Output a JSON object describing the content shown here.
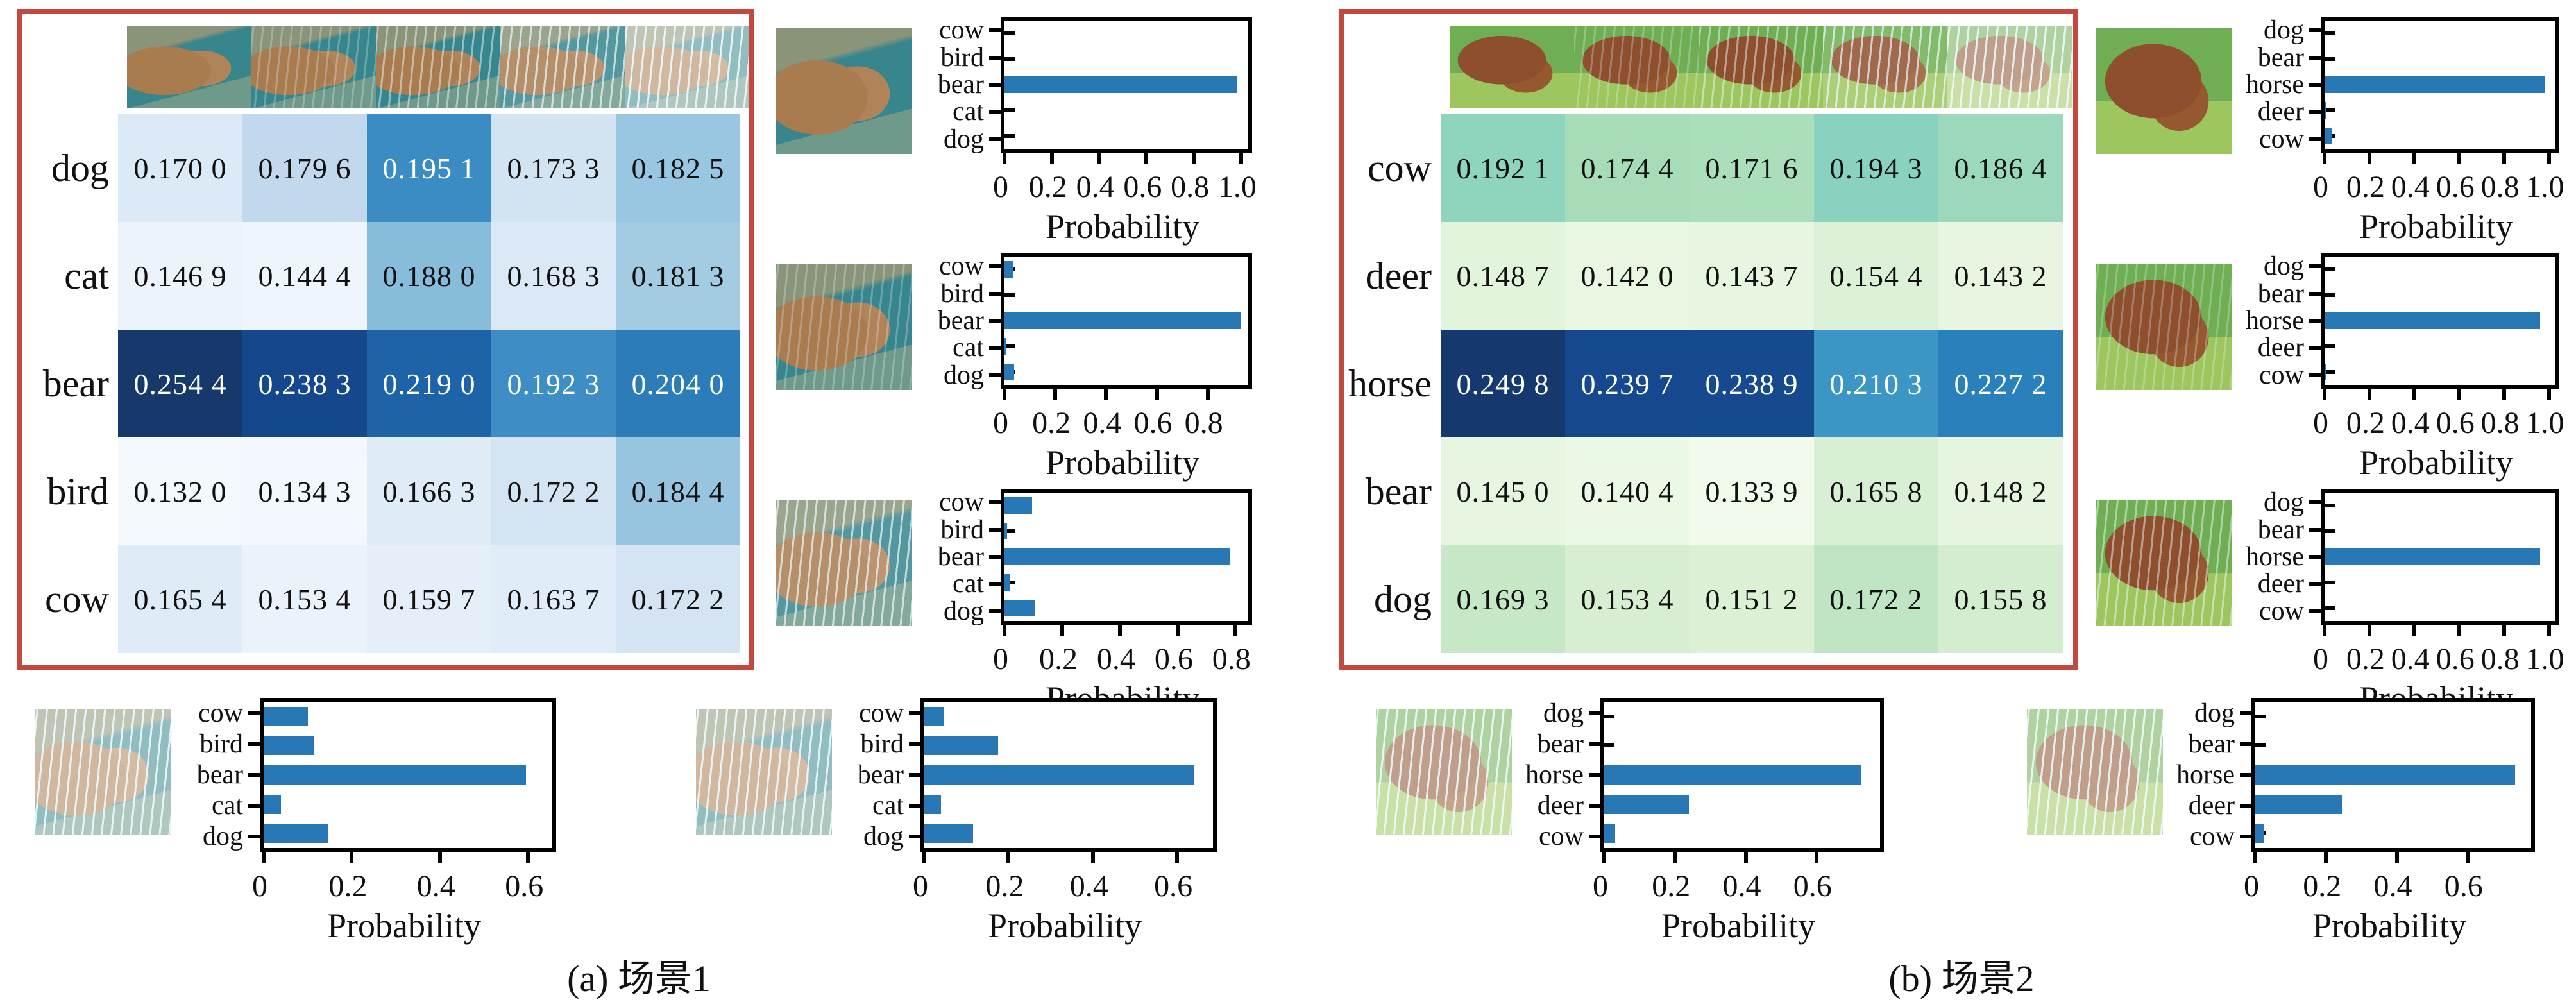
{
  "figure": {
    "captions": [
      "(a) 场景1",
      "(b) 场景2"
    ]
  },
  "colors": {
    "accent": "#2878b5",
    "frame": "#c5483f",
    "bar_blue": "#2878b5"
  },
  "images": {
    "a_strip": [
      {
        "scene": "bear",
        "rain": 0
      },
      {
        "scene": "bear",
        "rain": 1
      },
      {
        "scene": "bear",
        "rain": 2
      },
      {
        "scene": "bear",
        "rain": 3
      },
      {
        "scene": "bear",
        "rain": 4
      }
    ],
    "a_right": [
      {
        "scene": "bear",
        "rain": 0
      },
      {
        "scene": "bear",
        "rain": 1
      },
      {
        "scene": "bear",
        "rain": 3
      }
    ],
    "a_bottom": [
      {
        "scene": "bear",
        "rain": 4
      },
      {
        "scene": "bear",
        "rain": 4
      }
    ],
    "b_strip": [
      {
        "scene": "horse",
        "rain": 0
      },
      {
        "scene": "horse",
        "rain": 1
      },
      {
        "scene": "horse",
        "rain": 2
      },
      {
        "scene": "horse",
        "rain": 3
      },
      {
        "scene": "horse",
        "rain": 4
      }
    ],
    "b_right": [
      {
        "scene": "horse",
        "rain": 0
      },
      {
        "scene": "horse",
        "rain": 1
      },
      {
        "scene": "horse",
        "rain": 2
      }
    ],
    "b_bottom": [
      {
        "scene": "horse",
        "rain": 4
      },
      {
        "scene": "horse",
        "rain": 4
      }
    ]
  },
  "chart_data": [
    {
      "id": "scene1-confidence-heatmap",
      "type": "heatmap",
      "colormap": "Blues",
      "row_labels": [
        "dog",
        "cat",
        "bear",
        "bird",
        "cow"
      ],
      "col_labels": [
        "rain-level-0",
        "rain-level-1",
        "rain-level-2",
        "rain-level-3",
        "rain-level-4"
      ],
      "values": [
        [
          0.17,
          0.1796,
          0.1951,
          0.1733,
          0.1825
        ],
        [
          0.1469,
          0.1444,
          0.188,
          0.1683,
          0.1813
        ],
        [
          0.2544,
          0.2383,
          0.219,
          0.1923,
          0.204
        ],
        [
          0.132,
          0.1343,
          0.1663,
          0.1722,
          0.1844
        ],
        [
          0.1654,
          0.1534,
          0.1597,
          0.1637,
          0.1722
        ]
      ],
      "cell_text": [
        [
          "0.170 0",
          "0.179 6",
          "0.195 1",
          "0.173 3",
          "0.182 5"
        ],
        [
          "0.146 9",
          "0.144 4",
          "0.188 0",
          "0.168 3",
          "0.181 3"
        ],
        [
          "0.254 4",
          "0.238 3",
          "0.219 0",
          "0.192 3",
          "0.204 0"
        ],
        [
          "0.132 0",
          "0.134 3",
          "0.166 3",
          "0.172 2",
          "0.184 4"
        ],
        [
          "0.165 4",
          "0.153 4",
          "0.159 7",
          "0.163 7",
          "0.172 2"
        ]
      ],
      "cell_colors": [
        [
          "#dce9f6",
          "#c2d8ed",
          "#3c8cc4",
          "#d2e3f2",
          "#99c6e0"
        ],
        [
          "#ecf3fb",
          "#eff5fc",
          "#87bcdb",
          "#dbe8f5",
          "#a3cbe2"
        ],
        [
          "#16386b",
          "#14478c",
          "#1e63a8",
          "#3e8ec5",
          "#2d7cba"
        ],
        [
          "#f4f9fe",
          "#f2f8fd",
          "#dfebf7",
          "#d5e4f2",
          "#97c5df"
        ],
        [
          "#dfebf7",
          "#eaf2fa",
          "#e5eff9",
          "#e0ecf7",
          "#d5e4f2"
        ]
      ],
      "text_light": [
        [
          false,
          false,
          true,
          false,
          false
        ],
        [
          false,
          false,
          false,
          false,
          false
        ],
        [
          true,
          true,
          true,
          true,
          true
        ],
        [
          false,
          false,
          false,
          false,
          false
        ],
        [
          false,
          false,
          false,
          false,
          false
        ]
      ]
    },
    {
      "id": "scene1-pred-clean",
      "type": "bar",
      "orientation": "horizontal",
      "categories": [
        "cow",
        "bird",
        "bear",
        "cat",
        "dog"
      ],
      "values": [
        0,
        0,
        0.98,
        0,
        0
      ],
      "xmax": 1.03,
      "xticks": [
        0,
        0.2,
        0.4,
        0.6,
        0.8,
        1.0
      ],
      "xtick_labels": [
        "0",
        "0.2",
        "0.4",
        "0.6",
        "0.8",
        "1.0"
      ],
      "xlabel": "Probability"
    },
    {
      "id": "scene1-pred-light-rain",
      "type": "bar",
      "orientation": "horizontal",
      "categories": [
        "cow",
        "bird",
        "bear",
        "cat",
        "dog"
      ],
      "values": [
        0.035,
        0,
        0.93,
        0.007,
        0.037
      ],
      "xmax": 0.96,
      "xticks": [
        0,
        0.2,
        0.4,
        0.6,
        0.8
      ],
      "xtick_labels": [
        "0",
        "0.2",
        "0.4",
        "0.6",
        "0.8"
      ],
      "xlabel": "Probability"
    },
    {
      "id": "scene1-pred-heavy-rain",
      "type": "bar",
      "orientation": "horizontal",
      "categories": [
        "cow",
        "bird",
        "bear",
        "cat",
        "dog"
      ],
      "values": [
        0.095,
        0.008,
        0.78,
        0.02,
        0.105
      ],
      "xmax": 0.845,
      "xticks": [
        0,
        0.2,
        0.4,
        0.6,
        0.8
      ],
      "xtick_labels": [
        "0",
        "0.2",
        "0.4",
        "0.6",
        "0.8"
      ],
      "xlabel": "Probability"
    },
    {
      "id": "scene1-pred-storm-left",
      "type": "bar",
      "orientation": "horizontal",
      "categories": [
        "cow",
        "bird",
        "bear",
        "cat",
        "dog"
      ],
      "values": [
        0.1,
        0.115,
        0.595,
        0.04,
        0.145
      ],
      "xmax": 0.655,
      "xticks": [
        0,
        0.2,
        0.4,
        0.6
      ],
      "xtick_labels": [
        "0",
        "0.2",
        "0.4",
        "0.6"
      ],
      "xlabel": "Probability"
    },
    {
      "id": "scene1-pred-storm-right",
      "type": "bar",
      "orientation": "horizontal",
      "categories": [
        "cow",
        "bird",
        "bear",
        "cat",
        "dog"
      ],
      "values": [
        0.045,
        0.175,
        0.64,
        0.04,
        0.115
      ],
      "xmax": 0.685,
      "xticks": [
        0,
        0.2,
        0.4,
        0.6
      ],
      "xtick_labels": [
        "0",
        "0.2",
        "0.4",
        "0.6"
      ],
      "xlabel": "Probability"
    },
    {
      "id": "scene2-confidence-heatmap",
      "type": "heatmap",
      "colormap": "GnBu",
      "row_labels": [
        "cow",
        "deer",
        "horse",
        "bear",
        "dog"
      ],
      "col_labels": [
        "rain-level-0",
        "rain-level-1",
        "rain-level-2",
        "rain-level-3",
        "rain-level-4"
      ],
      "values": [
        [
          0.1921,
          0.1744,
          0.1716,
          0.1943,
          0.1864
        ],
        [
          0.1487,
          0.142,
          0.1437,
          0.1544,
          0.1432
        ],
        [
          0.2498,
          0.2397,
          0.2389,
          0.2103,
          0.2272
        ],
        [
          0.145,
          0.1404,
          0.1339,
          0.1658,
          0.1482
        ],
        [
          0.1693,
          0.1534,
          0.1512,
          0.1722,
          0.1558
        ]
      ],
      "cell_text": [
        [
          "0.192 1",
          "0.174 4",
          "0.171 6",
          "0.194 3",
          "0.186 4"
        ],
        [
          "0.148 7",
          "0.142 0",
          "0.143 7",
          "0.154 4",
          "0.143 2"
        ],
        [
          "0.249 8",
          "0.239 7",
          "0.238 9",
          "0.210 3",
          "0.227 2"
        ],
        [
          "0.145 0",
          "0.140 4",
          "0.133 9",
          "0.165 8",
          "0.148 2"
        ],
        [
          "0.169 3",
          "0.153 4",
          "0.151 2",
          "0.172 2",
          "0.155 8"
        ]
      ],
      "cell_colors": [
        [
          "#8fd4bc",
          "#a7dcb9",
          "#abdebb",
          "#8ad2c0",
          "#9cd8bb"
        ],
        [
          "#e3f4dd",
          "#e9f7e2",
          "#e7f6e0",
          "#dcf1d8",
          "#e8f6e1"
        ],
        [
          "#15396e",
          "#15488c",
          "#154a8f",
          "#3b96c6",
          "#2a80ba"
        ],
        [
          "#e7f6e0",
          "#ecf8e6",
          "#f1faeb",
          "#d9efd5",
          "#e5f5df"
        ],
        [
          "#c7e8c6",
          "#d8eed3",
          "#dbf0d5",
          "#c0e5c4",
          "#d4edd0"
        ]
      ],
      "text_light": [
        [
          false,
          false,
          false,
          false,
          false
        ],
        [
          false,
          false,
          false,
          false,
          false
        ],
        [
          true,
          true,
          true,
          true,
          true
        ],
        [
          false,
          false,
          false,
          false,
          false
        ],
        [
          false,
          false,
          false,
          false,
          false
        ]
      ]
    },
    {
      "id": "scene2-pred-clean",
      "type": "bar",
      "orientation": "horizontal",
      "categories": [
        "dog",
        "bear",
        "horse",
        "deer",
        "cow"
      ],
      "values": [
        0,
        0,
        0.98,
        0.01,
        0.035
      ],
      "xmax": 1.03,
      "xticks": [
        0,
        0.2,
        0.4,
        0.6,
        0.8,
        1.0
      ],
      "xtick_labels": [
        "0",
        "0.2",
        "0.4",
        "0.6",
        "0.8",
        "1.0"
      ],
      "xlabel": "Probability"
    },
    {
      "id": "scene2-pred-light-rain",
      "type": "bar",
      "orientation": "horizontal",
      "categories": [
        "dog",
        "bear",
        "horse",
        "deer",
        "cow"
      ],
      "values": [
        0,
        0,
        0.96,
        0,
        0.008
      ],
      "xmax": 1.03,
      "xticks": [
        0,
        0.2,
        0.4,
        0.6,
        0.8,
        1.0
      ],
      "xtick_labels": [
        "0",
        "0.2",
        "0.4",
        "0.6",
        "0.8",
        "1.0"
      ],
      "xlabel": "Probability"
    },
    {
      "id": "scene2-pred-medium-rain",
      "type": "bar",
      "orientation": "horizontal",
      "categories": [
        "dog",
        "bear",
        "horse",
        "deer",
        "cow"
      ],
      "values": [
        0,
        0,
        0.96,
        0,
        0
      ],
      "xmax": 1.03,
      "xticks": [
        0,
        0.2,
        0.4,
        0.6,
        0.8,
        1.0
      ],
      "xtick_labels": [
        "0",
        "0.2",
        "0.4",
        "0.6",
        "0.8",
        "1.0"
      ],
      "xlabel": "Probability"
    },
    {
      "id": "scene2-pred-storm-left",
      "type": "bar",
      "orientation": "horizontal",
      "categories": [
        "dog",
        "bear",
        "horse",
        "deer",
        "cow"
      ],
      "values": [
        0,
        0,
        0.725,
        0.24,
        0.03
      ],
      "xmax": 0.78,
      "xticks": [
        0,
        0.2,
        0.4,
        0.6
      ],
      "xtick_labels": [
        "0",
        "0.2",
        "0.4",
        "0.6"
      ],
      "xlabel": "Probability"
    },
    {
      "id": "scene2-pred-storm-right",
      "type": "bar",
      "orientation": "horizontal",
      "categories": [
        "dog",
        "bear",
        "horse",
        "deer",
        "cow"
      ],
      "values": [
        0,
        0,
        0.735,
        0.245,
        0.025
      ],
      "xmax": 0.78,
      "xticks": [
        0,
        0.2,
        0.4,
        0.6
      ],
      "xtick_labels": [
        "0",
        "0.2",
        "0.4",
        "0.6"
      ],
      "xlabel": "Probability"
    }
  ]
}
